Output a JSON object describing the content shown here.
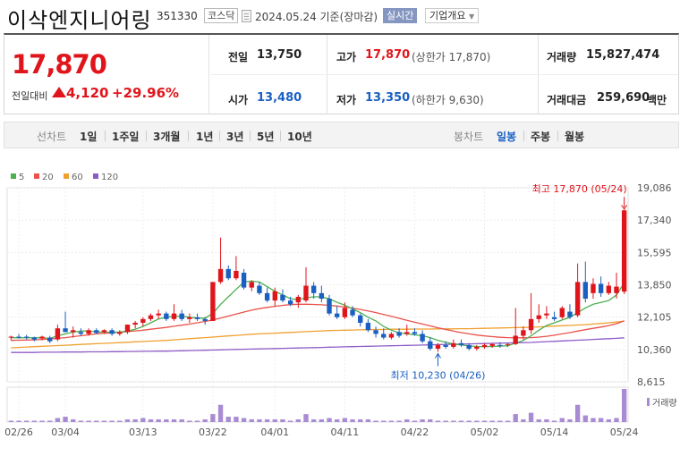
{
  "header": {
    "company_name": "이삭엔지니어링",
    "stock_code": "351330",
    "market": "코스닥",
    "date_text": "2024.05.24  기준(장마감)",
    "realtime_label": "실시간",
    "company_info_label": "기업개요"
  },
  "quote": {
    "price": "17,870",
    "change_label": "전일대비",
    "change_value": "4,120",
    "change_rate": "+29.96%",
    "prev_close": {
      "label": "전일",
      "value": "13,750"
    },
    "open": {
      "label": "시가",
      "value": "13,480"
    },
    "high": {
      "label": "고가",
      "value": "17,870",
      "sub": "(상한가 17,870)"
    },
    "low": {
      "label": "저가",
      "value": "13,350",
      "sub": "(하한가 9,630)"
    },
    "volume": {
      "label": "거래량",
      "value": "15,827,474"
    },
    "amount": {
      "label": "거래대금",
      "value": "259,690",
      "unit": "백만"
    }
  },
  "periods": {
    "line_label": "선차트",
    "line_items": [
      "1일",
      "1주일",
      "3개월",
      "1년",
      "3년",
      "5년",
      "10년"
    ],
    "candle_label": "봉차트",
    "candle_items": [
      "일봉",
      "주봉",
      "월봉"
    ],
    "selected": "일봉"
  },
  "colors": {
    "up": "#e0151c",
    "down": "#1a5fc2",
    "ma5": "#4caf50",
    "ma20": "#e9534b",
    "ma60": "#f0a030",
    "ma120": "#8e5cc7",
    "volume": "#a98bd4"
  },
  "chart_data": {
    "type": "candlestick",
    "legend": [
      {
        "name": "5",
        "color": "#4caf50"
      },
      {
        "name": "20",
        "color": "#e9534b"
      },
      {
        "name": "60",
        "color": "#f0a030"
      },
      {
        "name": "120",
        "color": "#8e5cc7"
      }
    ],
    "ylim": [
      8615,
      19086
    ],
    "y_ticks": [
      "19,086",
      "17,340",
      "15,595",
      "13,850",
      "12,105",
      "10,360",
      "8,615"
    ],
    "y_tick_values": [
      19086,
      17340,
      15595,
      13850,
      12105,
      10360,
      8615
    ],
    "x_ticks": [
      {
        "label": "02/26",
        "index": 1
      },
      {
        "label": "03/04",
        "index": 7
      },
      {
        "label": "03/13",
        "index": 17
      },
      {
        "label": "03/22",
        "index": 26
      },
      {
        "label": "04/01",
        "index": 34
      },
      {
        "label": "04/11",
        "index": 43
      },
      {
        "label": "04/22",
        "index": 52
      },
      {
        "label": "05/02",
        "index": 61
      },
      {
        "label": "05/14",
        "index": 70
      },
      {
        "label": "05/24",
        "index": 79
      }
    ],
    "max_annotation": "최고 17,870 (05/24)",
    "min_annotation": "최저 10,230 (04/26)",
    "volume_label": "거래량",
    "candles": [
      [
        11000,
        11100,
        10850,
        11050
      ],
      [
        11050,
        11200,
        10950,
        11000
      ],
      [
        11050,
        11150,
        10900,
        11000
      ],
      [
        11000,
        11050,
        10800,
        10900
      ],
      [
        10950,
        11100,
        10850,
        11050
      ],
      [
        11000,
        11100,
        10700,
        10800
      ],
      [
        10900,
        11700,
        10800,
        11500
      ],
      [
        11500,
        12400,
        11300,
        11300
      ],
      [
        11300,
        11600,
        11000,
        11400
      ],
      [
        11300,
        11500,
        11100,
        11200
      ],
      [
        11200,
        11500,
        11100,
        11400
      ],
      [
        11400,
        11500,
        11200,
        11250
      ],
      [
        11300,
        11450,
        11200,
        11400
      ],
      [
        11400,
        11500,
        11100,
        11200
      ],
      [
        11200,
        11400,
        11100,
        11300
      ],
      [
        11300,
        11700,
        11200,
        11700
      ],
      [
        11700,
        11900,
        11500,
        11800
      ],
      [
        11800,
        12100,
        11600,
        12000
      ],
      [
        12000,
        12300,
        11900,
        12200
      ],
      [
        12200,
        12500,
        12000,
        12300
      ],
      [
        12300,
        12400,
        11900,
        12000
      ],
      [
        12000,
        12800,
        11900,
        12300
      ],
      [
        12300,
        12500,
        11900,
        12000
      ],
      [
        12000,
        12300,
        11800,
        12100
      ],
      [
        12100,
        12300,
        11900,
        12000
      ],
      [
        12000,
        12100,
        11700,
        11900
      ],
      [
        11900,
        14000,
        11900,
        14000
      ],
      [
        14000,
        16400,
        13900,
        14700
      ],
      [
        14700,
        14900,
        14100,
        14200
      ],
      [
        14200,
        15400,
        14100,
        14600
      ],
      [
        14500,
        14700,
        13600,
        13700
      ],
      [
        13700,
        14100,
        13500,
        14000
      ],
      [
        13800,
        14000,
        13300,
        13400
      ],
      [
        13400,
        13700,
        12900,
        13000
      ],
      [
        13000,
        13700,
        12700,
        13500
      ],
      [
        13300,
        13600,
        12900,
        13000
      ],
      [
        13000,
        13200,
        12700,
        12800
      ],
      [
        12900,
        13300,
        12600,
        13200
      ],
      [
        13000,
        14800,
        12900,
        13800
      ],
      [
        13800,
        14000,
        13100,
        13400
      ],
      [
        13400,
        13800,
        12900,
        13100
      ],
      [
        13100,
        13300,
        12200,
        12300
      ],
      [
        12300,
        12700,
        12000,
        12100
      ],
      [
        12100,
        12900,
        12000,
        12600
      ],
      [
        12500,
        12700,
        12100,
        12200
      ],
      [
        12200,
        12300,
        11600,
        11800
      ],
      [
        11800,
        12000,
        11300,
        11400
      ],
      [
        11400,
        11600,
        11000,
        11200
      ],
      [
        11200,
        11500,
        10900,
        11000
      ],
      [
        11000,
        11300,
        10900,
        11200
      ],
      [
        11300,
        11500,
        11000,
        11100
      ],
      [
        11200,
        11700,
        11100,
        11300
      ],
      [
        11300,
        11500,
        11100,
        11200
      ],
      [
        11200,
        11400,
        10700,
        10800
      ],
      [
        10800,
        11000,
        10300,
        10400
      ],
      [
        10400,
        10700,
        10230,
        10600
      ],
      [
        10600,
        10800,
        10400,
        10500
      ],
      [
        10500,
        10900,
        10400,
        10700
      ],
      [
        10700,
        10900,
        10500,
        10600
      ],
      [
        10600,
        10700,
        10300,
        10400
      ],
      [
        10400,
        10600,
        10300,
        10500
      ],
      [
        10500,
        10700,
        10400,
        10600
      ],
      [
        10550,
        10700,
        10450,
        10650
      ],
      [
        10600,
        10750,
        10450,
        10550
      ],
      [
        10600,
        10700,
        10500,
        10650
      ],
      [
        10650,
        12600,
        10600,
        11100
      ],
      [
        11100,
        11600,
        10900,
        11400
      ],
      [
        11400,
        13400,
        11200,
        12000
      ],
      [
        12000,
        12800,
        11800,
        12200
      ],
      [
        12200,
        12700,
        12000,
        12300
      ],
      [
        12100,
        12400,
        11900,
        12000
      ],
      [
        12100,
        12700,
        12000,
        12600
      ],
      [
        12400,
        12800,
        12000,
        12100
      ],
      [
        12200,
        15000,
        12100,
        14000
      ],
      [
        14000,
        15100,
        12900,
        13100
      ],
      [
        13400,
        14200,
        13100,
        13900
      ],
      [
        13900,
        14300,
        13200,
        13400
      ],
      [
        13400,
        14000,
        13300,
        13800
      ],
      [
        13400,
        14500,
        13100,
        13750
      ],
      [
        13480,
        17870,
        13350,
        17870
      ]
    ],
    "ma5": [
      11000,
      10990,
      11000,
      10990,
      11000,
      10950,
      11100,
      11200,
      11300,
      11350,
      11360,
      11300,
      11300,
      11290,
      11300,
      11350,
      11450,
      11600,
      11800,
      12000,
      12100,
      12150,
      12150,
      12100,
      12050,
      12050,
      12300,
      12800,
      13200,
      13600,
      14000,
      14050,
      14000,
      13750,
      13500,
      13300,
      13100,
      13050,
      13150,
      13200,
      13200,
      13100,
      12900,
      12750,
      12550,
      12350,
      12100,
      11900,
      11600,
      11400,
      11250,
      11200,
      11150,
      11100,
      11000,
      10850,
      10750,
      10650,
      10600,
      10550,
      10520,
      10500,
      10520,
      10540,
      10560,
      10700,
      10850,
      11100,
      11400,
      11650,
      11800,
      11950,
      12100,
      12350,
      12600,
      12800,
      12900,
      13000,
      13300,
      13950
    ],
    "ma20": [
      10850,
      10860,
      10870,
      10880,
      10900,
      10920,
      10960,
      11000,
      11050,
      11100,
      11150,
      11200,
      11230,
      11260,
      11290,
      11320,
      11360,
      11400,
      11450,
      11500,
      11550,
      11610,
      11670,
      11730,
      11800,
      11870,
      11950,
      12050,
      12160,
      12270,
      12380,
      12480,
      12560,
      12630,
      12690,
      12740,
      12780,
      12800,
      12800,
      12790,
      12770,
      12740,
      12700,
      12650,
      12590,
      12520,
      12440,
      12350,
      12250,
      12150,
      12040,
      11930,
      11830,
      11730,
      11630,
      11530,
      11440,
      11350,
      11270,
      11200,
      11140,
      11090,
      11050,
      11020,
      11000,
      10990,
      10990,
      11000,
      11030,
      11070,
      11130,
      11200,
      11270,
      11350,
      11430,
      11500,
      11570,
      11650,
      11750,
      11900
    ],
    "ma60": [
      10450,
      10470,
      10490,
      10510,
      10530,
      10550,
      10570,
      10590,
      10610,
      10630,
      10650,
      10670,
      10690,
      10710,
      10730,
      10750,
      10770,
      10790,
      10810,
      10830,
      10850,
      10880,
      10910,
      10940,
      10970,
      11000,
      11030,
      11060,
      11090,
      11120,
      11150,
      11180,
      11200,
      11220,
      11240,
      11260,
      11280,
      11300,
      11320,
      11340,
      11360,
      11380,
      11390,
      11400,
      11410,
      11420,
      11430,
      11440,
      11440,
      11450,
      11450,
      11450,
      11460,
      11460,
      11460,
      11470,
      11470,
      11470,
      11480,
      11480,
      11490,
      11500,
      11510,
      11520,
      11530,
      11540,
      11550,
      11560,
      11580,
      11600,
      11620,
      11640,
      11660,
      11680,
      11700,
      11730,
      11760,
      11800,
      11840,
      11890
    ],
    "ma120": [
      10200,
      10200,
      10200,
      10200,
      10210,
      10210,
      10210,
      10220,
      10220,
      10220,
      10230,
      10230,
      10230,
      10240,
      10240,
      10250,
      10250,
      10260,
      10260,
      10270,
      10270,
      10280,
      10290,
      10300,
      10310,
      10320,
      10330,
      10340,
      10350,
      10360,
      10370,
      10380,
      10390,
      10400,
      10410,
      10420,
      10430,
      10440,
      10450,
      10460,
      10470,
      10480,
      10490,
      10500,
      10510,
      10520,
      10530,
      10540,
      10550,
      10560,
      10570,
      10580,
      10590,
      10600,
      10610,
      10620,
      10630,
      10640,
      10650,
      10660,
      10670,
      10680,
      10690,
      10700,
      10710,
      10720,
      10730,
      10740,
      10760,
      10780,
      10800,
      10820,
      10840,
      10860,
      10880,
      10900,
      10920,
      10940,
      10960,
      10990
    ],
    "volume": [
      1,
      1,
      1,
      1,
      1,
      1,
      3,
      4,
      2,
      1,
      1,
      1,
      1,
      1,
      1,
      2,
      2,
      3,
      2,
      2,
      2,
      2,
      2,
      1,
      1,
      2,
      6,
      13,
      4,
      4,
      3,
      2,
      2,
      2,
      2,
      2,
      1,
      2,
      6,
      2,
      2,
      3,
      2,
      3,
      2,
      2,
      2,
      1,
      1,
      1,
      1,
      2,
      1,
      2,
      2,
      1,
      1,
      1,
      1,
      1,
      1,
      1,
      1,
      1,
      1,
      6,
      2,
      7,
      2,
      2,
      1,
      3,
      2,
      13,
      5,
      3,
      3,
      2,
      3,
      25
    ]
  }
}
